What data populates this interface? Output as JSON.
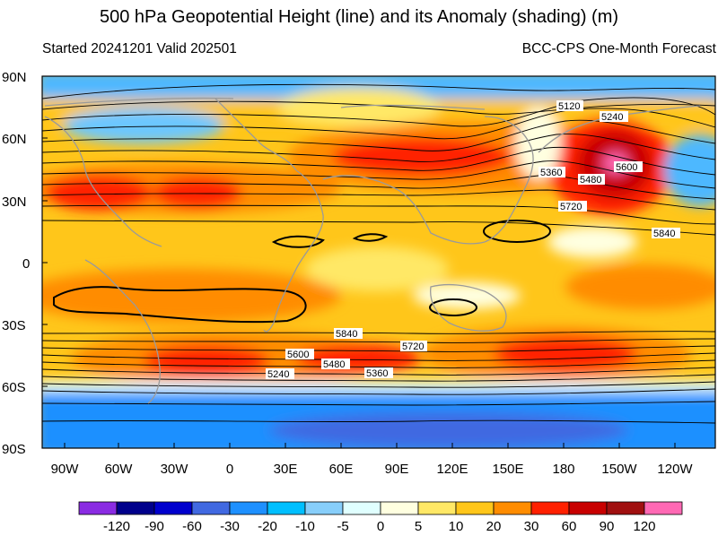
{
  "title": "500 hPa Geopotential Height (line) and its Anomaly (shading) (m)",
  "subtitle_left": "Started 20241201  Valid 202501",
  "subtitle_right": "BCC-CPS One-Month Forecast",
  "map": {
    "lat_labels": [
      "90N",
      "60N",
      "30N",
      "0",
      "30S",
      "60S",
      "90S"
    ],
    "lon_labels": [
      "90W",
      "60W",
      "30W",
      "0",
      "30E",
      "60E",
      "90E",
      "120E",
      "150E",
      "180",
      "150W",
      "120W"
    ],
    "contour_labels": [
      "5120",
      "5240",
      "5360",
      "5480",
      "5600",
      "5720",
      "5840",
      "5840",
      "5720",
      "5600",
      "5480",
      "5360",
      "5240"
    ]
  },
  "colorbar": {
    "labels": [
      "-120",
      "-90",
      "-60",
      "-30",
      "-20",
      "-10",
      "-5",
      "0",
      "5",
      "10",
      "20",
      "30",
      "60",
      "90",
      "120"
    ],
    "colors": [
      "#8a2be2",
      "#00008b",
      "#0000cd",
      "#4169e1",
      "#1e90ff",
      "#00bfff",
      "#87cefa",
      "#e0ffff",
      "#ffffe0",
      "#ffe866",
      "#ffc61a",
      "#ff8c00",
      "#ff2000",
      "#c80000",
      "#a01010",
      "#ff69b4"
    ]
  }
}
